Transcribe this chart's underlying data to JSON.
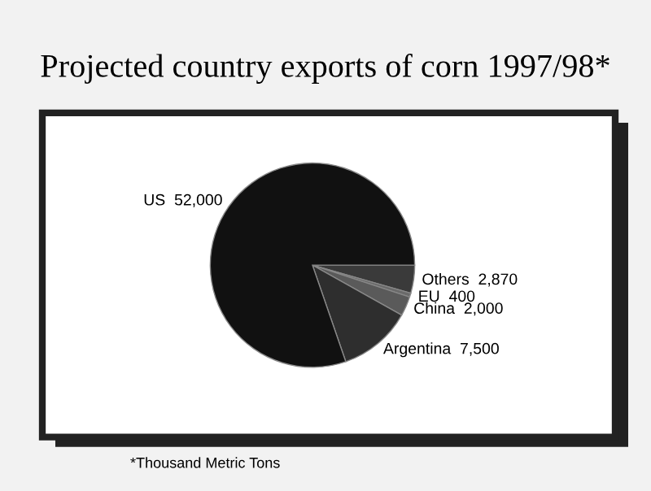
{
  "chart_data": {
    "type": "pie",
    "title": "Projected country exports of corn 1997/98*",
    "categories": [
      "Others",
      "EU",
      "China",
      "Argentina",
      "US"
    ],
    "values": [
      2870,
      400,
      2000,
      7500,
      52000
    ],
    "value_labels": [
      "2,870",
      "400",
      "2,000",
      "7,500",
      "52,000"
    ],
    "colors": [
      "#3a3a3a",
      "#6a6a6a",
      "#5a5a5a",
      "#2e2e2e",
      "#111111"
    ],
    "annotations": [
      "*Thousand Metric Tons"
    ]
  }
}
